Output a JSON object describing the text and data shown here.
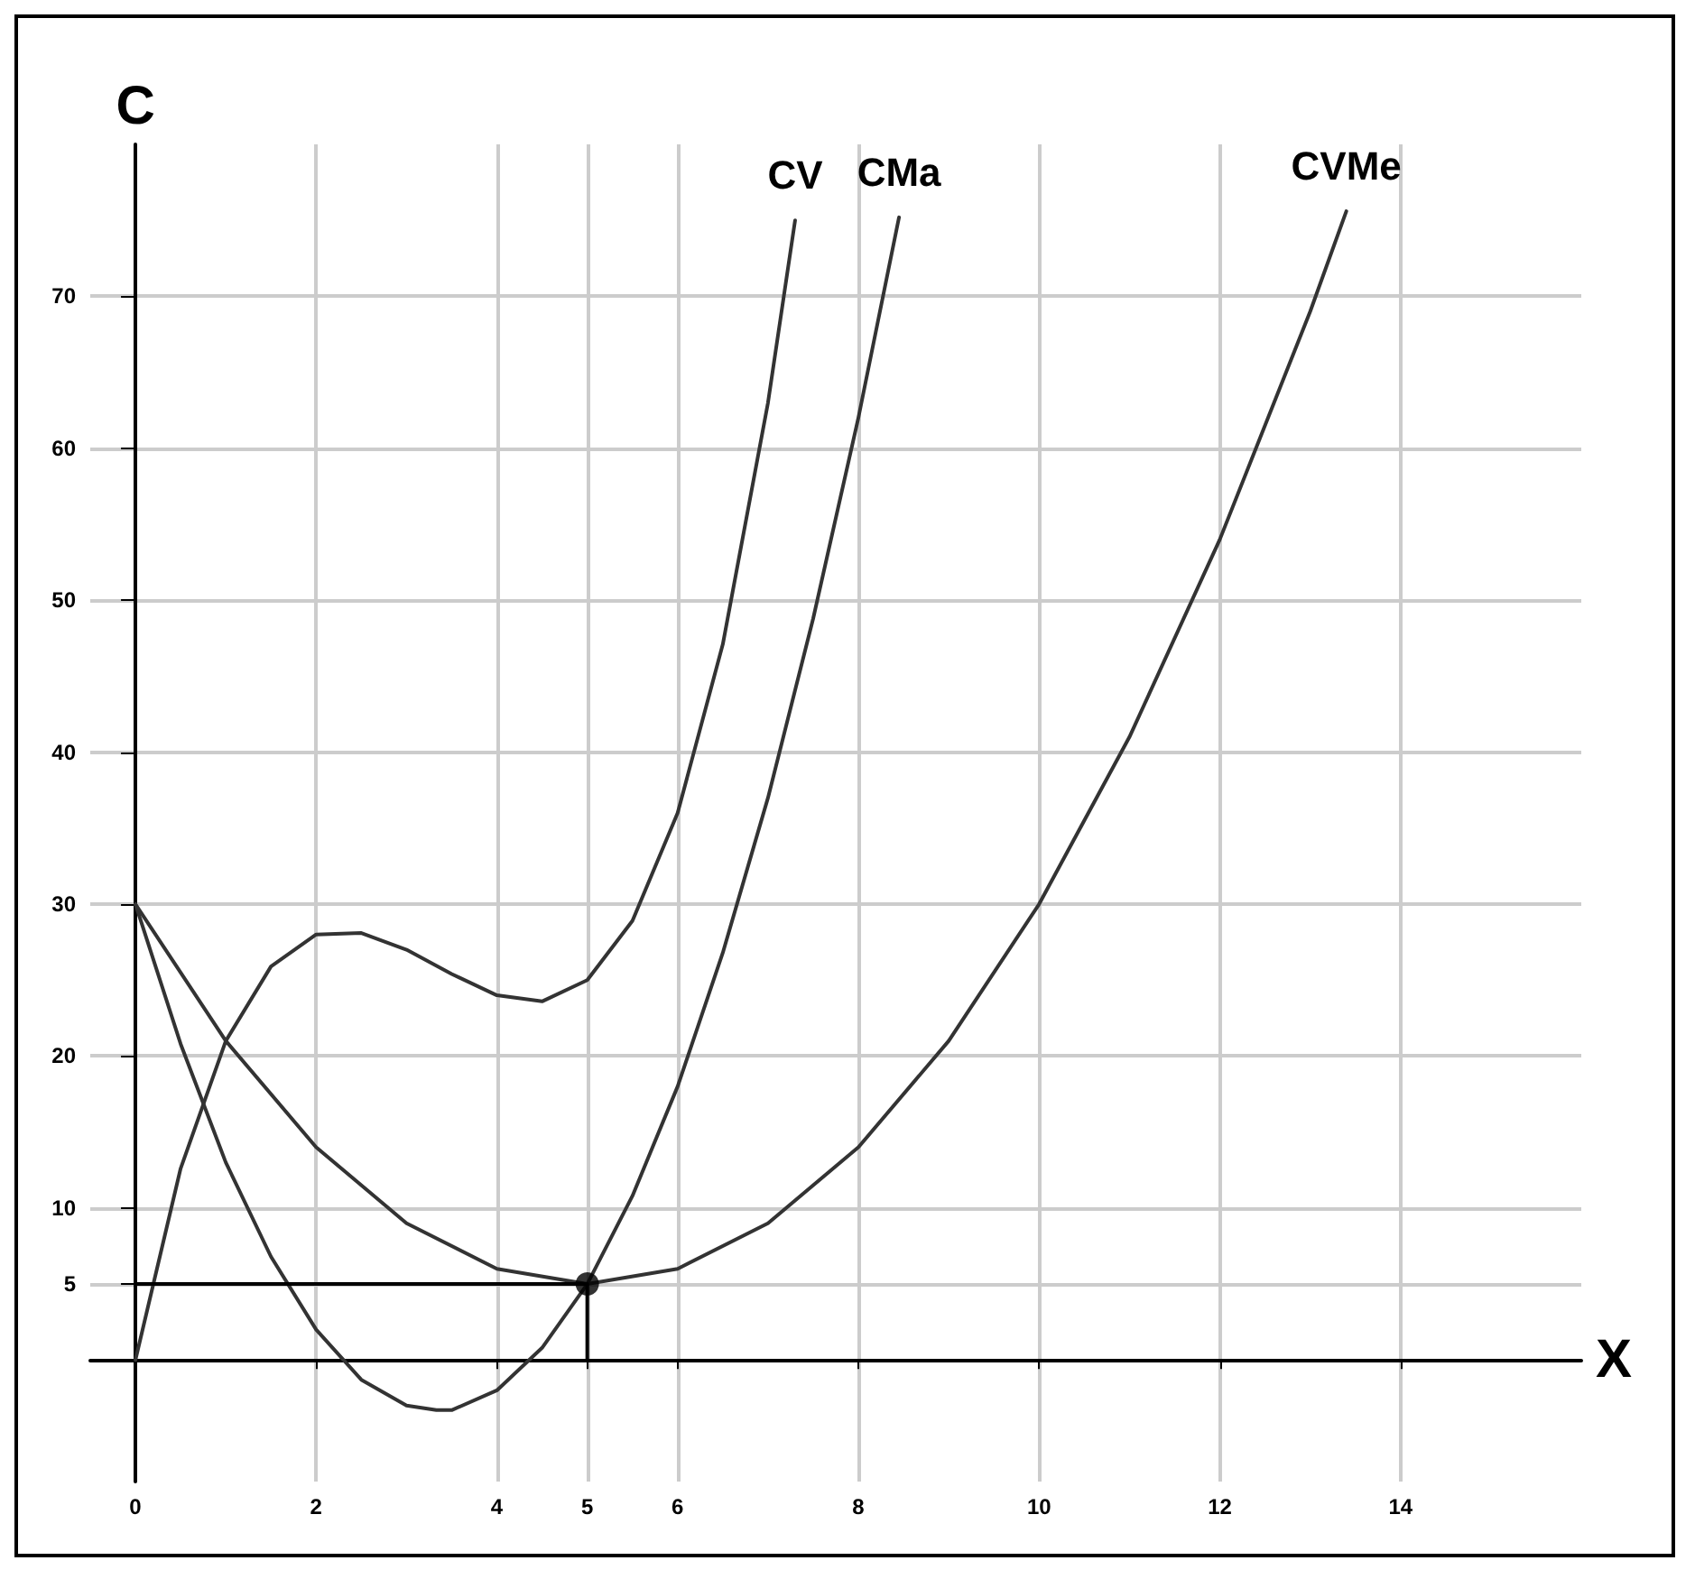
{
  "chart_data": {
    "type": "line",
    "xlabel": "X",
    "ylabel": "C",
    "xlim": [
      -0.5,
      16
    ],
    "ylim": [
      -8,
      80
    ],
    "xticks": [
      0,
      2,
      4,
      5,
      6,
      8,
      10,
      12,
      14
    ],
    "yticks": [
      5,
      10,
      20,
      30,
      40,
      50,
      60,
      70
    ],
    "grid": true,
    "series": [
      {
        "name": "CV",
        "color": "#333333",
        "marker": "none",
        "x": [
          0,
          0.5,
          1,
          1.5,
          2,
          2.5,
          3,
          3.5,
          4,
          4.5,
          5,
          5.5,
          6,
          6.5,
          7,
          7.3
        ],
        "values": [
          0,
          12.6,
          21,
          25.9,
          28,
          28.1,
          27,
          25.4,
          24,
          23.6,
          25,
          28.9,
          36,
          47.1,
          63,
          75
        ]
      },
      {
        "name": "CMa",
        "color": "#333333",
        "marker": "none",
        "x": [
          0,
          0.5,
          1,
          1.5,
          2,
          2.5,
          3,
          3.33,
          3.5,
          4,
          4.5,
          5,
          5.5,
          6,
          6.5,
          7,
          7.5,
          8,
          8.45
        ],
        "values": [
          30,
          20.8,
          13,
          6.8,
          2,
          -1.3,
          -3,
          -3.3,
          -3.3,
          -2,
          0.8,
          5,
          10.8,
          18,
          26.8,
          37,
          48.8,
          62,
          75.2
        ]
      },
      {
        "name": "CVMe",
        "color": "#333333",
        "marker": "none",
        "x": [
          0,
          1,
          2,
          3,
          4,
          5,
          6,
          7,
          8,
          9,
          10,
          11,
          12,
          13,
          13.4
        ],
        "values": [
          30,
          21,
          14,
          9,
          6,
          5,
          6,
          9,
          14,
          21,
          30,
          41,
          54,
          69,
          75.6
        ]
      },
      {
        "type": "line",
        "color": "#000000",
        "marker": "none",
        "x": [
          0,
          5,
          5
        ],
        "values": [
          5,
          5,
          0
        ]
      },
      {
        "type": "scatter",
        "color": "#000000",
        "marker": "circle",
        "x": [
          5
        ],
        "values": [
          5
        ]
      }
    ]
  }
}
